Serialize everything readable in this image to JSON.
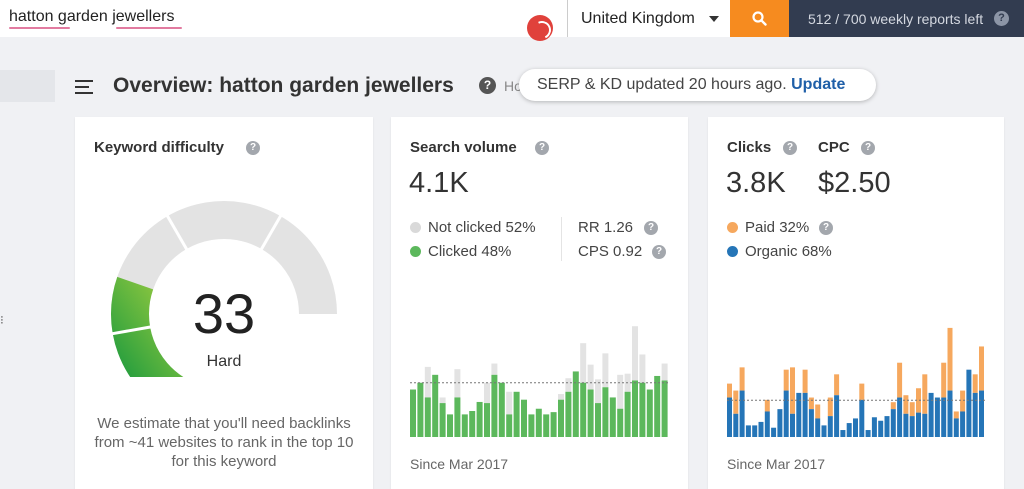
{
  "search": {
    "query": "hatton garden jewellers",
    "country": "United Kingdom",
    "button_icon": "magnifier-icon",
    "reports_left": "512 / 700 weekly reports left"
  },
  "header": {
    "title": "Overview: hatton garden jewellers",
    "help": "?",
    "truncated": "Ho",
    "toast_text": "SERP & KD updated 20 hours ago.",
    "toast_link": "Update"
  },
  "kd": {
    "title": "Keyword difficulty",
    "score": "33",
    "score_value": 33,
    "label": "Hard",
    "description": "We estimate that you'll need backlinks from ~41 websites to rank in the top 10 for this keyword"
  },
  "volume": {
    "title": "Search volume",
    "value": "4.1K",
    "legend": [
      {
        "label": "Not clicked 52%",
        "color": "#d9d9d9"
      },
      {
        "label": "Clicked 48%",
        "color": "#5cb85c"
      }
    ],
    "stats": [
      "RR 1.26",
      "CPS 0.92"
    ],
    "since": "Since Mar 2017"
  },
  "clicks": {
    "title": "Clicks",
    "value": "3.8K",
    "cpc_title": "CPC",
    "cpc_value": "$2.50",
    "legend": [
      {
        "label": "Paid 32%",
        "color": "#f6a85e"
      },
      {
        "label": "Organic 68%",
        "color": "#2575b7"
      }
    ],
    "since": "Since Mar 2017"
  },
  "colors": {
    "topbar": "#323c50",
    "accent": "#f68b1f",
    "clicked": "#5cb85c",
    "not_clicked": "#e3e3e3",
    "paid": "#f6a85e",
    "organic": "#2575b7",
    "link": "#1f5fa8"
  },
  "chart_data": [
    {
      "type": "bar",
      "series": [
        {
          "name": "Clicked",
          "values": [
            42,
            48,
            35,
            55,
            30,
            20,
            35,
            20,
            23,
            31,
            30,
            55,
            48,
            20,
            40,
            33,
            20,
            25,
            20,
            22,
            33,
            40,
            58,
            48,
            42,
            30,
            44,
            35,
            25,
            40,
            50,
            48,
            42,
            54,
            50
          ]
        },
        {
          "name": "Not clicked",
          "values": [
            0,
            0,
            27,
            0,
            5,
            0,
            25,
            0,
            0,
            0,
            18,
            10,
            0,
            20,
            0,
            0,
            0,
            0,
            0,
            0,
            5,
            12,
            0,
            35,
            22,
            21,
            30,
            0,
            30,
            16,
            48,
            25,
            0,
            0,
            15
          ]
        }
      ],
      "stacked": true,
      "reference_line": true
    },
    {
      "type": "bar",
      "series": [
        {
          "name": "Organic",
          "values": [
            34,
            20,
            40,
            10,
            10,
            13,
            22,
            8,
            24,
            40,
            20,
            38,
            38,
            24,
            16,
            10,
            18,
            36,
            6,
            12,
            16,
            32,
            6,
            17,
            14,
            18,
            24,
            34,
            20,
            18,
            21,
            20,
            38,
            34,
            34,
            40,
            16,
            22,
            58,
            38,
            40
          ]
        },
        {
          "name": "Paid",
          "values": [
            12,
            20,
            20,
            0,
            0,
            0,
            10,
            0,
            0,
            18,
            40,
            0,
            20,
            10,
            12,
            0,
            16,
            18,
            0,
            0,
            0,
            14,
            0,
            0,
            0,
            0,
            6,
            30,
            16,
            12,
            21,
            34,
            0,
            0,
            30,
            54,
            6,
            18,
            0,
            16,
            38
          ]
        }
      ],
      "stacked": true,
      "reference_line": true
    }
  ]
}
